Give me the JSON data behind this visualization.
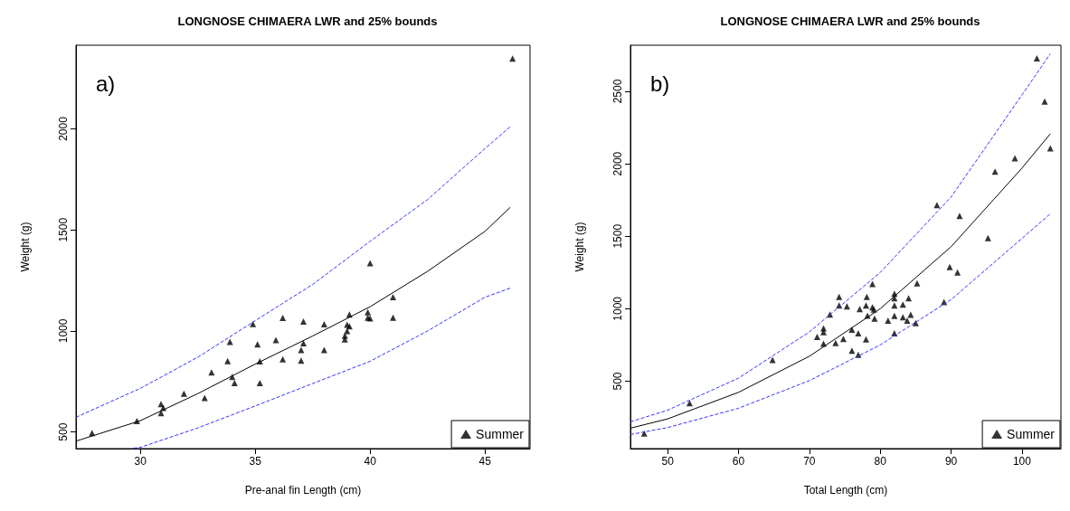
{
  "chart_data": [
    {
      "type": "scatter",
      "title": "LONGNOSE CHIMAERA LWR and 25% bounds",
      "xlabel": "Pre-anal fin Length (cm)",
      "ylabel": "Weight (g)",
      "annotations": [
        "a)"
      ],
      "xlim": [
        27.2,
        46.96
      ],
      "xticks": [
        30,
        35,
        40,
        45
      ],
      "ylim": [
        418,
        2414
      ],
      "yticks": [
        500,
        1000,
        1500,
        2000
      ],
      "legend": "bottom right",
      "marker": "triangle",
      "series": [
        {
          "name": "Summer",
          "color": "#000000",
          "x": [
            27.9,
            29.85,
            30.9,
            30.9,
            31.0,
            31.9,
            32.8,
            33.1,
            33.8,
            33.9,
            34.0,
            34.1,
            34.9,
            35.1,
            35.2,
            35.2,
            35.9,
            36.2,
            36.2,
            37.0,
            37.0,
            37.1,
            37.1,
            38.0,
            38.0,
            38.9,
            38.9,
            39.0,
            39.0,
            39.1,
            39.1,
            39.9,
            39.9,
            40.0,
            40.0,
            41.0,
            41.0,
            46.2
          ],
          "values": [
            495,
            554,
            638,
            594,
            619,
            690,
            669,
            795,
            851,
            946,
            773,
            743,
            1035,
            934,
            850,
            743,
            955,
            860,
            1065,
            906,
            853,
            939,
            1047,
            906,
            1033,
            958,
            976,
            1000,
            1031,
            1023,
            1082,
            1066,
            1093,
            1062,
            1336,
            1168,
            1066,
            2348
          ]
        },
        {
          "type": "line",
          "marker": "none",
          "color": "#000000",
          "line_style": "solid",
          "x": [
            27.2,
            30,
            32.5,
            35,
            37.5,
            40,
            42.5,
            45,
            46.1
          ],
          "values": [
            455,
            556,
            690,
            836,
            975,
            1120,
            1295,
            1493,
            1612
          ]
        },
        {
          "type": "line",
          "marker": "none",
          "color": "#3333ff",
          "line_style": "dashed",
          "x": [
            27.2,
            30,
            32.5,
            35,
            37.5,
            40,
            42.5,
            45,
            46.1
          ],
          "values": [
            573,
            716,
            870,
            1051,
            1230,
            1444,
            1650,
            1903,
            2011
          ]
        },
        {
          "type": "line",
          "marker": "none",
          "color": "#3333ff",
          "line_style": "dashed",
          "x": [
            29.7,
            30,
            32.5,
            35,
            37.5,
            40,
            42.5,
            45,
            46.1
          ],
          "values": [
            420,
            424,
            520,
            629,
            740,
            850,
            1000,
            1167,
            1212
          ]
        }
      ]
    },
    {
      "type": "scatter",
      "title": "LONGNOSE CHIMAERA LWR and 25% bounds",
      "xlabel": "Total Length (cm)",
      "ylabel": "Weight (g)",
      "annotations": [
        "b)"
      ],
      "xlim": [
        44.75,
        105.5
      ],
      "xticks": [
        50,
        60,
        70,
        80,
        90,
        100
      ],
      "ylim": [
        35,
        2818
      ],
      "yticks": [
        500,
        1000,
        1500,
        2000,
        2500
      ],
      "legend": "bottom right",
      "marker": "triangle",
      "series": [
        {
          "name": "Summer",
          "color": "#000000",
          "x": [
            46.7,
            53.1,
            64.8,
            71.1,
            72.0,
            72.0,
            72.0,
            72.9,
            73.7,
            74.2,
            74.2,
            74.8,
            75.3,
            76.0,
            76.0,
            76.9,
            76.9,
            77.1,
            78.0,
            78.0,
            78.1,
            78.2,
            78.9,
            78.9,
            79.1,
            79.2,
            81.1,
            82.0,
            82.0,
            82.0,
            82.0,
            82.0,
            83.2,
            83.2,
            83.8,
            84.0,
            84.3,
            85.0,
            85.2,
            88.0,
            89.0,
            89.8,
            90.9,
            91.2,
            95.2,
            96.2,
            99.0,
            102.1,
            103.2,
            104.0
          ],
          "values": [
            139,
            349,
            647,
            806,
            865,
            838,
            759,
            960,
            763,
            1081,
            1022,
            791,
            1017,
            855,
            710,
            831,
            683,
            997,
            1022,
            789,
            1081,
            953,
            1171,
            1010,
            994,
            932,
            918,
            1103,
            1073,
            1022,
            950,
            831,
            1029,
            941,
            918,
            1073,
            959,
            901,
            1175,
            1715,
            1046,
            1287,
            1250,
            1640,
            1487,
            1946,
            2038,
            2727,
            2430,
            2106
          ]
        },
        {
          "type": "line",
          "marker": "none",
          "color": "#000000",
          "line_style": "solid",
          "x": [
            44.75,
            50,
            60,
            70,
            80,
            90,
            100,
            104
          ],
          "values": [
            176,
            240,
            423,
            672,
            1000,
            1428,
            1970,
            2207
          ]
        },
        {
          "type": "line",
          "marker": "none",
          "color": "#3333ff",
          "line_style": "dashed",
          "x": [
            44.75,
            50,
            60,
            70,
            80,
            90,
            100,
            104
          ],
          "values": [
            220,
            300,
            521,
            840,
            1250,
            1771,
            2475,
            2759
          ]
        },
        {
          "type": "line",
          "marker": "none",
          "color": "#3333ff",
          "line_style": "dashed",
          "x": [
            44.75,
            50,
            60,
            70,
            80,
            90,
            100,
            104
          ],
          "values": [
            132,
            180,
            313,
            504,
            750,
            1063,
            1485,
            1655
          ]
        }
      ]
    }
  ]
}
